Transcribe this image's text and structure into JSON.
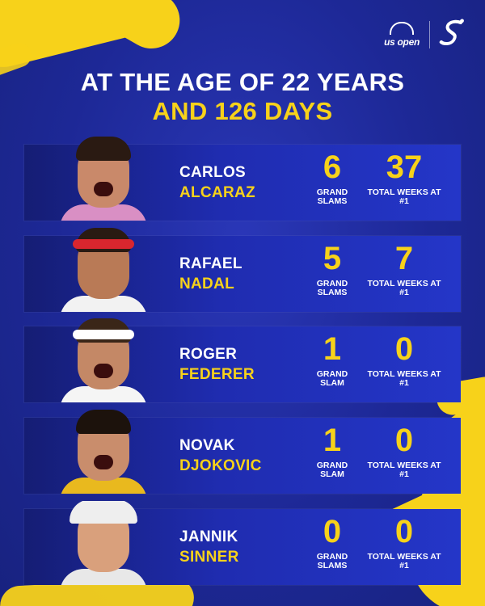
{
  "header": {
    "brand_text": "us open",
    "headline_line1": "AT THE AGE OF 22 YEARS",
    "headline_line2": "AND 126 DAYS"
  },
  "players": [
    {
      "first": "CARLOS",
      "last": "ALCARAZ",
      "slams": "6",
      "slams_label": "GRAND SLAMS",
      "weeks": "37",
      "weeks_label": "TOTAL WEEKS AT #1"
    },
    {
      "first": "RAFAEL",
      "last": "NADAL",
      "slams": "5",
      "slams_label": "GRAND SLAMS",
      "weeks": "7",
      "weeks_label": "TOTAL WEEKS AT #1"
    },
    {
      "first": "ROGER",
      "last": "FEDERER",
      "slams": "1",
      "slams_label": "GRAND SLAM",
      "weeks": "0",
      "weeks_label": "TOTAL WEEKS AT #1"
    },
    {
      "first": "NOVAK",
      "last": "DJOKOVIC",
      "slams": "1",
      "slams_label": "GRAND SLAM",
      "weeks": "0",
      "weeks_label": "TOTAL WEEKS AT #1"
    },
    {
      "first": "JANNIK",
      "last": "SINNER",
      "slams": "0",
      "slams_label": "GRAND SLAMS",
      "weeks": "0",
      "weeks_label": "TOTAL WEEKS AT #1"
    }
  ],
  "colors": {
    "background": "#1f2a9c",
    "accent_yellow": "#f7d21a",
    "text_white": "#ffffff"
  }
}
